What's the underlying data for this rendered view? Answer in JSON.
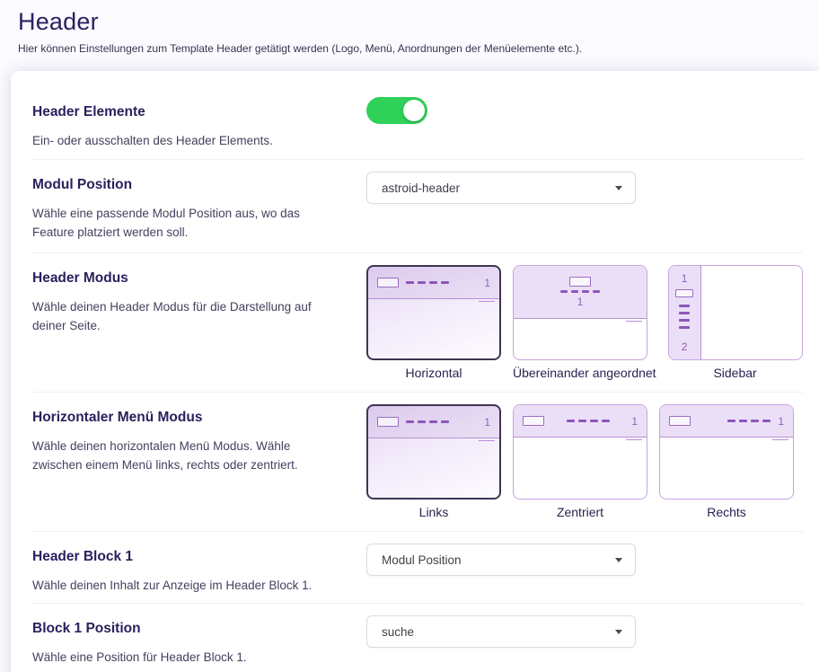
{
  "page": {
    "title": "Header",
    "subtitle": "Hier können Einstellungen zum Template Header getätigt werden (Logo, Menü, Anordnungen der Menüelemente etc.)."
  },
  "settings": {
    "header_elements": {
      "label": "Header Elemente",
      "description": "Ein- oder ausschalten des Header Elements.",
      "value": "on"
    },
    "modul_position": {
      "label": "Modul Position",
      "description": "Wähle eine passende Modul Position aus, wo das Feature platziert werden soll.",
      "value": "astroid-header"
    },
    "header_modus": {
      "label": "Header Modus",
      "description": "Wähle deinen Header Modus für die Darstellung auf deiner Seite.",
      "selected": "Horizontal",
      "options": [
        {
          "label": "Horizontal",
          "selected": true
        },
        {
          "label": "Übereinander angeordnet",
          "selected": false
        },
        {
          "label": "Sidebar",
          "selected": false
        }
      ]
    },
    "menu_modus": {
      "label": "Horizontaler Menü Modus",
      "description": "Wähle deinen horizontalen Menü Modus. Wähle zwischen einem Menü links, rechts oder zentriert.",
      "selected": "Links",
      "options": [
        {
          "label": "Links",
          "selected": true
        },
        {
          "label": "Zentriert",
          "selected": false
        },
        {
          "label": "Rechts",
          "selected": false
        }
      ]
    },
    "header_block_1": {
      "label": "Header Block 1",
      "description": "Wähle deinen Inhalt zur Anzeige im Header Block 1.",
      "value": "Modul Position"
    },
    "block_1_position": {
      "label": "Block 1 Position",
      "description": "Wähle eine Position für Header Block 1.",
      "value": "suche"
    }
  },
  "thumbnails": {
    "number_1": "1",
    "number_2": "2"
  },
  "colors": {
    "accent_purple": "#8e44ad",
    "toggle_on": "#2fd159",
    "title_text": "#2d2063",
    "selected_border": "#3f3552"
  }
}
